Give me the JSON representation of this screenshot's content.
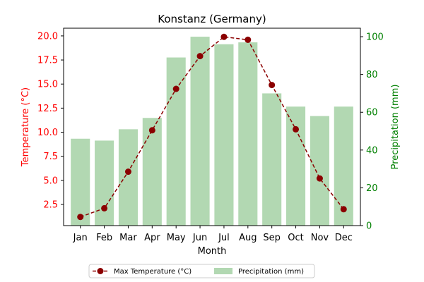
{
  "chart_data": {
    "type": "bar+line",
    "title": "Konstanz (Germany)",
    "xlabel": "Month",
    "categories": [
      "Jan",
      "Feb",
      "Mar",
      "Apr",
      "May",
      "Jun",
      "Jul",
      "Aug",
      "Sep",
      "Oct",
      "Nov",
      "Dec"
    ],
    "left_axis": {
      "label": "Temperature (°C)",
      "color": "#ff0000",
      "ylim": [
        0.3,
        20.8
      ],
      "ticks": [
        2.5,
        5.0,
        7.5,
        10.0,
        12.5,
        15.0,
        17.5,
        20.0
      ]
    },
    "right_axis": {
      "label": "Precipitation (mm)",
      "color": "#008000",
      "ylim": [
        0,
        104.5
      ],
      "ticks": [
        0,
        20,
        40,
        60,
        80,
        100
      ]
    },
    "series": [
      {
        "name": "Max Temperature (°C)",
        "type": "line",
        "axis": "left",
        "color": "#8b0000",
        "style": "dashed-with-circle-markers",
        "values": [
          1.2,
          2.1,
          5.9,
          10.2,
          14.5,
          17.9,
          19.9,
          19.6,
          14.9,
          10.3,
          5.2,
          2.0
        ]
      },
      {
        "name": "Precipitation (mm)",
        "type": "bar",
        "axis": "right",
        "color": "#b2d8b2",
        "values": [
          46,
          45,
          51,
          57,
          89,
          100,
          96,
          97,
          70,
          63,
          58,
          63
        ]
      }
    ],
    "legend": {
      "placement": "bottom-center",
      "columns": 2
    },
    "grid": false
  }
}
